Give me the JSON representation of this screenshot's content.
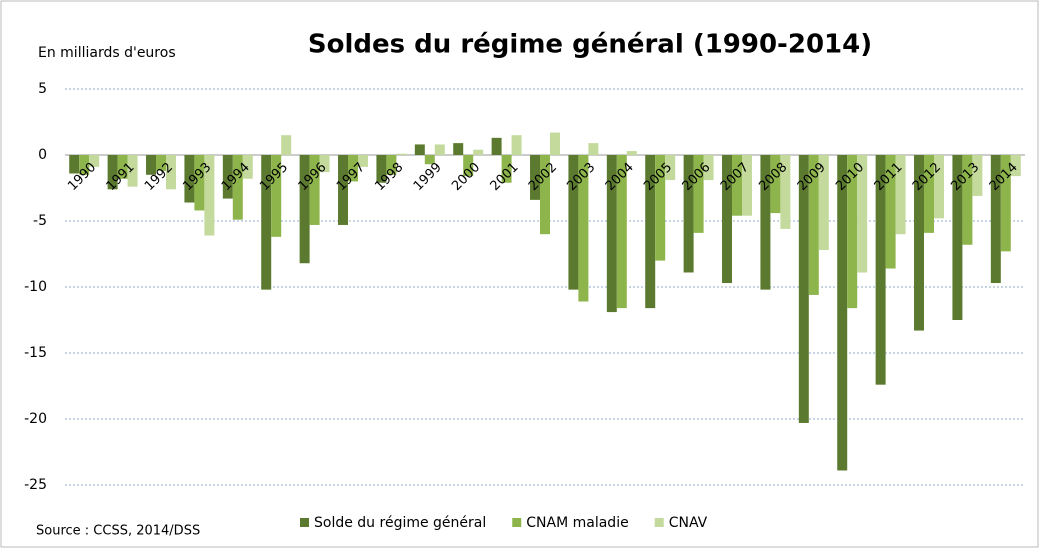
{
  "chart_data": {
    "type": "bar",
    "title": "Soldes du régime général (1990-2014)",
    "y_label": "En milliards d'euros",
    "source": "Source : CCSS, 2014/DSS",
    "categories": [
      "1990",
      "1991",
      "1992",
      "1993",
      "1994",
      "1995",
      "1996",
      "1997",
      "1998",
      "1999",
      "2000",
      "2001",
      "2002",
      "2003",
      "2004",
      "2005",
      "2006",
      "2007",
      "2008",
      "2009",
      "2010",
      "2011",
      "2012",
      "2013",
      "2014"
    ],
    "series": [
      {
        "name": "Solde du régime général",
        "color": "#5b7a2f",
        "values": [
          -1.4,
          -2.6,
          -1.5,
          -3.6,
          -3.3,
          -10.2,
          -8.2,
          -5.3,
          -2.1,
          0.8,
          0.9,
          1.3,
          -3.4,
          -10.2,
          -11.9,
          -11.6,
          -8.9,
          -9.7,
          -10.2,
          -20.3,
          -23.9,
          -17.4,
          -13.3,
          -12.5,
          -9.7
        ]
      },
      {
        "name": "CNAM maladie",
        "color": "#8db54b",
        "values": [
          -1.5,
          -1.8,
          -1.2,
          -4.2,
          -4.9,
          -6.2,
          -5.3,
          -2.0,
          -1.5,
          -0.7,
          -1.6,
          -2.1,
          -6.0,
          -11.1,
          -11.6,
          -8.0,
          -5.9,
          -4.6,
          -4.4,
          -10.6,
          -11.6,
          -8.6,
          -5.9,
          -6.8,
          -7.3
        ]
      },
      {
        "name": "CNAV",
        "color": "#c3da9c",
        "values": [
          -0.9,
          -2.4,
          -2.6,
          -6.1,
          -1.8,
          1.5,
          -1.3,
          -0.9,
          0.1,
          0.8,
          0.4,
          1.5,
          1.7,
          0.9,
          0.3,
          -1.9,
          -1.9,
          -4.6,
          -5.6,
          -7.2,
          -8.9,
          -6.0,
          -4.8,
          -3.1,
          -1.6
        ]
      }
    ],
    "ylim": [
      -25,
      5
    ],
    "yticks": [
      5,
      0,
      -5,
      -10,
      -15,
      -20,
      -25
    ],
    "grid": true,
    "legend": "bottom"
  }
}
